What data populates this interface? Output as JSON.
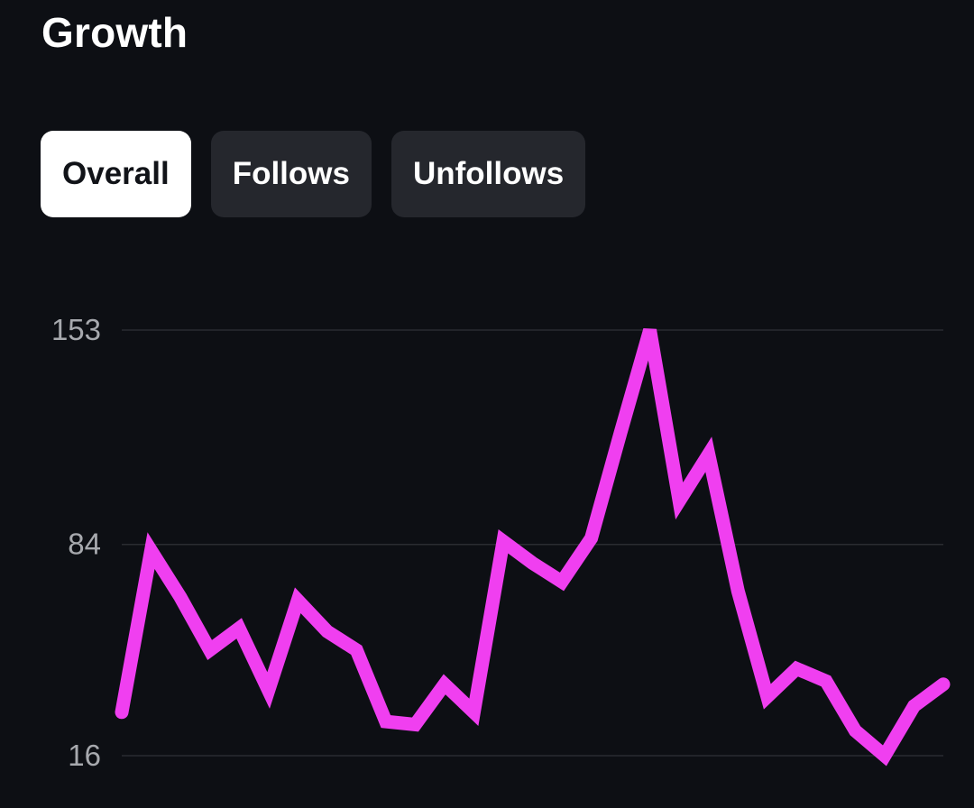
{
  "header": {
    "title": "Growth"
  },
  "tabs": [
    {
      "label": "Overall",
      "active": true
    },
    {
      "label": "Follows",
      "active": false
    },
    {
      "label": "Unfollows",
      "active": false
    }
  ],
  "colors": {
    "background": "#0d0f14",
    "line": "#f03ff0",
    "tab_active_bg": "#ffffff",
    "tab_bg": "#25272d",
    "gridline": "#2a2c31",
    "tick_text": "#a7a9ae"
  },
  "chart_data": {
    "type": "line",
    "title": "",
    "xlabel": "",
    "ylabel": "",
    "ylim": [
      16,
      153
    ],
    "y_ticks": [
      "153",
      "84",
      "16"
    ],
    "y_tick_values": [
      153,
      84,
      16
    ],
    "grid": true,
    "series": [
      {
        "values": [
          30,
          82,
          67,
          50,
          57,
          37,
          66,
          56,
          50,
          27,
          26,
          39,
          30,
          85,
          78,
          72,
          86,
          120,
          153,
          98,
          113,
          69,
          35,
          44,
          40,
          24,
          16,
          32,
          39
        ]
      }
    ]
  }
}
